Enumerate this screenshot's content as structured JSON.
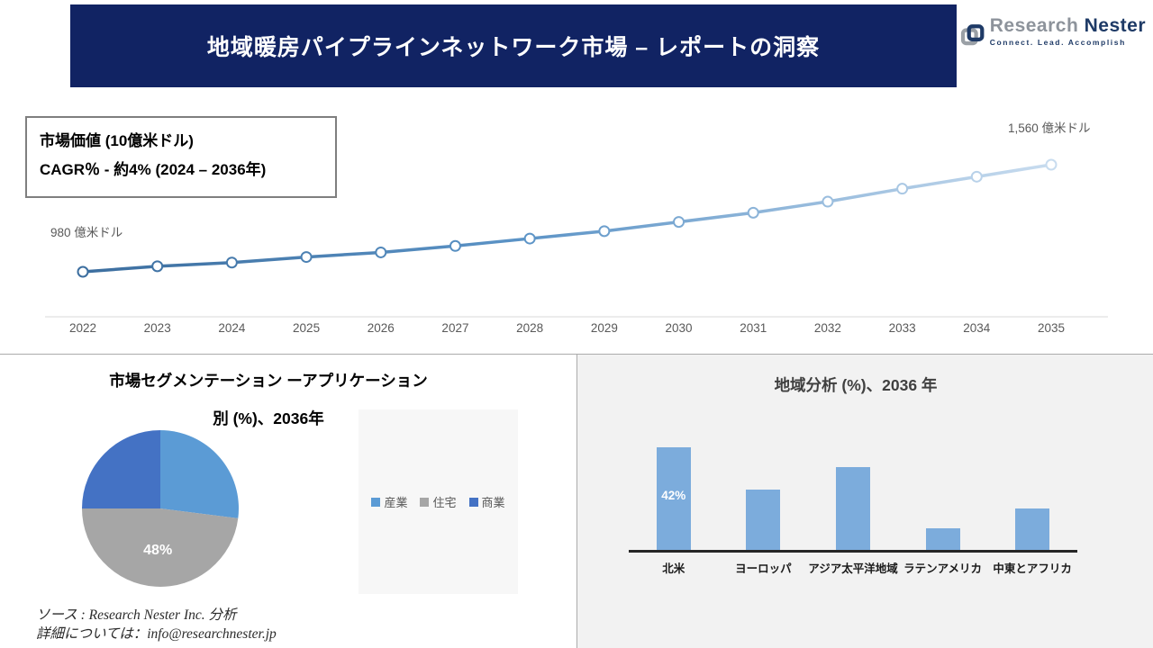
{
  "header": {
    "title": "地域暖房パイプラインネットワーク市場 – レポートの洞察",
    "logo": {
      "brand_gray": "Research",
      "brand_navy": "Nester",
      "tagline": "Connect. Lead. Accomplish"
    }
  },
  "info_box": {
    "line1": "市場価値 (10億米ドル)",
    "line2": "CAGR％ - 約4% (2024 – 2036年)"
  },
  "chart_data": [
    {
      "type": "line",
      "title": "市場価値 (10億米ドル)",
      "x": [
        2022,
        2023,
        2024,
        2025,
        2026,
        2027,
        2028,
        2029,
        2030,
        2031,
        2032,
        2033,
        2034,
        2035
      ],
      "values": [
        980,
        1010,
        1030,
        1060,
        1085,
        1120,
        1160,
        1200,
        1250,
        1300,
        1360,
        1430,
        1495,
        1560
      ],
      "ylabel": "億米ドル",
      "ylim": [
        980,
        1560
      ],
      "start_label": "980 億米ドル",
      "end_label": "1,560 億米ドル",
      "line_color_start": "#3c6e9f",
      "line_color_mid": "#5b93c6",
      "line_color_end": "#c8dcef",
      "marker_fill": "#ffffff",
      "grid": false
    },
    {
      "type": "pie",
      "title_line1": "市場セグメンテーション ーアプリケーション",
      "title_line2": "別 (%)、2036年",
      "segments": [
        {
          "label": "産業",
          "value": 27,
          "color": "#5b9bd5",
          "data_label": ""
        },
        {
          "label": "住宅",
          "value": 48,
          "color": "#a6a6a6",
          "data_label": "48%"
        },
        {
          "label": "商業",
          "value": 25,
          "color": "#4472c4",
          "data_label": ""
        }
      ],
      "legend_position": "right"
    },
    {
      "type": "bar",
      "title": "地域分析 (%)、2036 年",
      "categories": [
        "北米",
        "ヨーロッパ",
        "アジア太平洋地域",
        "ラテンアメリカ",
        "中東とアフリカ"
      ],
      "values": [
        42,
        25,
        34,
        9,
        17
      ],
      "data_labels": [
        "42%",
        "",
        "",
        "",
        ""
      ],
      "bar_color": "#7cacdc",
      "ylim": [
        0,
        50
      ],
      "grid": false
    }
  ],
  "footer": {
    "line1": "ソース : Research Nester Inc. 分析",
    "line2": "詳細については：info@researchnester.jp"
  }
}
